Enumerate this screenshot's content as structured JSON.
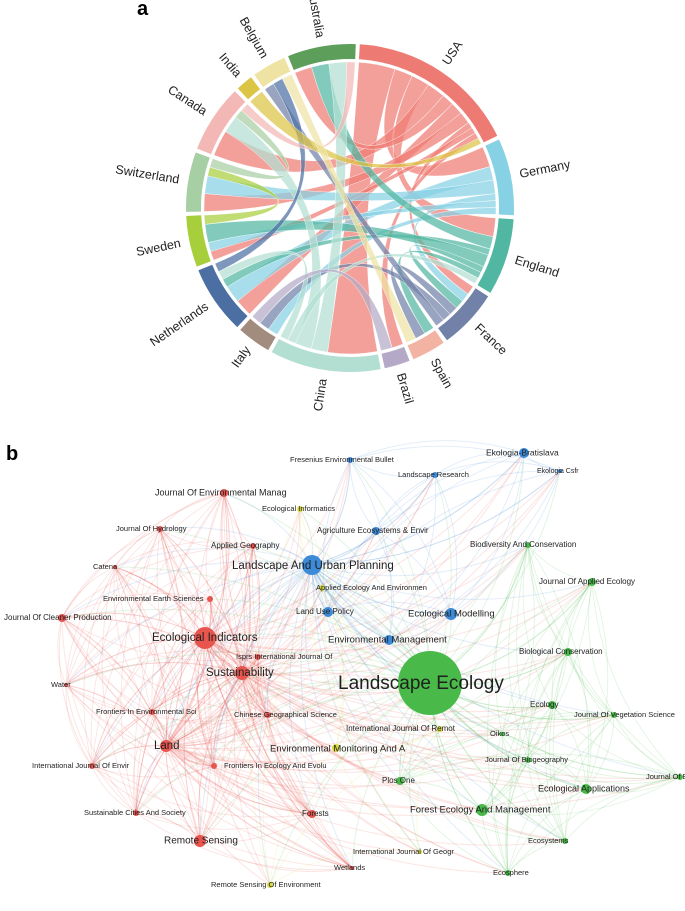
{
  "panel_a": {
    "letter": "a",
    "countries": [
      {
        "name": "USA",
        "value": 20,
        "color": "#ee7b73"
      },
      {
        "name": "Germany",
        "value": 9,
        "color": "#86d1e4"
      },
      {
        "name": "England",
        "value": 9,
        "color": "#52b7a2"
      },
      {
        "name": "France",
        "value": 7,
        "color": "#7181a7"
      },
      {
        "name": "Spain",
        "value": 4,
        "color": "#f2b3a3"
      },
      {
        "name": "Brazil",
        "value": 3,
        "color": "#b4aac7"
      },
      {
        "name": "China",
        "value": 13,
        "color": "#b3dfd3"
      },
      {
        "name": "Italy",
        "value": 4,
        "color": "#a28c7e"
      },
      {
        "name": "Netherlands",
        "value": 8,
        "color": "#4c6fa3"
      },
      {
        "name": "Sweden",
        "value": 6,
        "color": "#a7cf3c"
      },
      {
        "name": "Switzerland",
        "value": 7,
        "color": "#a7cfa4"
      },
      {
        "name": "Canada",
        "value": 8,
        "color": "#f3b8b5"
      },
      {
        "name": "India",
        "value": 2,
        "color": "#dcc444"
      },
      {
        "name": "Belgium",
        "value": 4,
        "color": "#efe3a3"
      },
      {
        "name": "Australia",
        "value": 8,
        "color": "#5c9e5a"
      }
    ],
    "links": [
      [
        "USA",
        "China",
        6
      ],
      [
        "USA",
        "Germany",
        3
      ],
      [
        "USA",
        "England",
        3
      ],
      [
        "USA",
        "Canada",
        3
      ],
      [
        "USA",
        "Australia",
        2
      ],
      [
        "USA",
        "Netherlands",
        2
      ],
      [
        "USA",
        "Switzerland",
        2
      ],
      [
        "USA",
        "France",
        1
      ],
      [
        "USA",
        "Sweden",
        1
      ],
      [
        "USA",
        "Brazil",
        1
      ],
      [
        "Germany",
        "Netherlands",
        2
      ],
      [
        "Germany",
        "Switzerland",
        2
      ],
      [
        "Germany",
        "France",
        1
      ],
      [
        "Germany",
        "Sweden",
        1
      ],
      [
        "Germany",
        "Italy",
        1
      ],
      [
        "England",
        "Australia",
        2
      ],
      [
        "England",
        "Netherlands",
        1
      ],
      [
        "England",
        "Sweden",
        2
      ],
      [
        "England",
        "France",
        1
      ],
      [
        "England",
        "Spain",
        1
      ],
      [
        "France",
        "Spain",
        1
      ],
      [
        "France",
        "Italy",
        1
      ],
      [
        "France",
        "Belgium",
        1
      ],
      [
        "China",
        "Australia",
        2
      ],
      [
        "China",
        "Canada",
        2
      ],
      [
        "China",
        "England",
        1
      ],
      [
        "China",
        "Netherlands",
        1
      ],
      [
        "Netherlands",
        "Belgium",
        1
      ],
      [
        "Sweden",
        "Switzerland",
        1
      ],
      [
        "Switzerland",
        "Canada",
        1
      ],
      [
        "Canada",
        "Australia",
        1
      ],
      [
        "India",
        "USA",
        1
      ],
      [
        "Belgium",
        "Spain",
        1
      ],
      [
        "Brazil",
        "Italy",
        1
      ]
    ]
  },
  "panel_b": {
    "letter": "b",
    "clusters": {
      "red": "#e8544e",
      "green": "#49b949",
      "blue": "#3d8ad8",
      "yellow": "#d8d840"
    },
    "nodes": [
      {
        "label": "Landscape Ecology",
        "cluster": "green",
        "size": 10,
        "font": 19
      },
      {
        "label": "Landscape And Urban Planning",
        "cluster": "blue",
        "size": 4,
        "font": 11.5
      },
      {
        "label": "Ecological Indicators",
        "cluster": "red",
        "size": 4.5,
        "font": 11.5
      },
      {
        "label": "Sustainability",
        "cluster": "red",
        "size": 3.2,
        "font": 11.5
      },
      {
        "label": "Land",
        "cluster": "red",
        "size": 3,
        "font": 11.5
      },
      {
        "label": "Remote Sensing",
        "cluster": "red",
        "size": 2.8,
        "font": 10
      },
      {
        "label": "Environmental Management",
        "cluster": "blue",
        "size": 2.2,
        "font": 9.5
      },
      {
        "label": "Ecological Modelling",
        "cluster": "blue",
        "size": 2.4,
        "font": 9.5
      },
      {
        "label": "Forest Ecology And Management",
        "cluster": "green",
        "size": 2.6,
        "font": 9.5
      },
      {
        "label": "Ecological Applications",
        "cluster": "green",
        "size": 2.2,
        "font": 9
      },
      {
        "label": "Environmental Monitoring And A",
        "cluster": "yellow",
        "size": 2.0,
        "font": 9.5
      },
      {
        "label": "Journal Of Environmental Manag",
        "cluster": "red",
        "size": 2.0,
        "font": 9
      },
      {
        "label": "Ekologia-Bratislava",
        "cluster": "blue",
        "size": 1.9,
        "font": 8.5
      },
      {
        "label": "Ekologia Csfr",
        "cluster": "blue",
        "size": 1.2,
        "font": 7
      },
      {
        "label": "Fresenius Environmental Bullet",
        "cluster": "blue",
        "size": 1.3,
        "font": 7.5
      },
      {
        "label": "Landscape Research",
        "cluster": "blue",
        "size": 1.3,
        "font": 7.5
      },
      {
        "label": "Ecological Informatics",
        "cluster": "yellow",
        "size": 1.3,
        "font": 7.5
      },
      {
        "label": "Journal Of Hydrology",
        "cluster": "red",
        "size": 1.3,
        "font": 7.5
      },
      {
        "label": "Agriculture Ecosystems & Envir",
        "cluster": "blue",
        "size": 1.6,
        "font": 8
      },
      {
        "label": "Biodiversity And Conservation",
        "cluster": "green",
        "size": 1.5,
        "font": 8
      },
      {
        "label": "Applied Geography",
        "cluster": "red",
        "size": 1.5,
        "font": 8
      },
      {
        "label": "Catena",
        "cluster": "red",
        "size": 1.2,
        "font": 7.5
      },
      {
        "label": "Journal Of Applied Ecology",
        "cluster": "green",
        "size": 1.6,
        "font": 8
      },
      {
        "label": "Applied Ecology And Environmen",
        "cluster": "yellow",
        "size": 1.3,
        "font": 7.5
      },
      {
        "label": "Environmental Earth Sciences",
        "cluster": "red",
        "size": 1.3,
        "font": 7.5
      },
      {
        "label": "Journal Of Cleaner Production",
        "cluster": "red",
        "size": 1.5,
        "font": 8
      },
      {
        "label": "Land Use Policy",
        "cluster": "blue",
        "size": 1.8,
        "font": 8
      },
      {
        "label": "Biological Conservation",
        "cluster": "green",
        "size": 1.6,
        "font": 8
      },
      {
        "label": "Isprs International Journal Of",
        "cluster": "red",
        "size": 1.3,
        "font": 7.5
      },
      {
        "label": "Water",
        "cluster": "red",
        "size": 1.2,
        "font": 7.5
      },
      {
        "label": "Frontiers In Environmental Sci",
        "cluster": "red",
        "size": 1.3,
        "font": 7.5
      },
      {
        "label": "Chinese Geographical Science",
        "cluster": "red",
        "size": 1.3,
        "font": 7.5
      },
      {
        "label": "Ecology",
        "cluster": "green",
        "size": 1.5,
        "font": 8
      },
      {
        "label": "International Journal Of Remot",
        "cluster": "yellow",
        "size": 1.5,
        "font": 8
      },
      {
        "label": "Journal Of Vegetation Science",
        "cluster": "green",
        "size": 1.3,
        "font": 7.5
      },
      {
        "label": "Oikos",
        "cluster": "green",
        "size": 1.3,
        "font": 7.5
      },
      {
        "label": "Journal Of Biogeography",
        "cluster": "green",
        "size": 1.3,
        "font": 7.5
      },
      {
        "label": "International Journal Of Envir",
        "cluster": "red",
        "size": 1.4,
        "font": 7.5
      },
      {
        "label": "Frontiers In Ecology And Evolu",
        "cluster": "red",
        "size": 1.3,
        "font": 7.5
      },
      {
        "label": "Journal Of Ecology",
        "cluster": "green",
        "size": 1.4,
        "font": 7.5
      },
      {
        "label": "Plos One",
        "cluster": "green",
        "size": 1.5,
        "font": 8
      },
      {
        "label": "Sustainable Cities And Society",
        "cluster": "red",
        "size": 1.3,
        "font": 7.5
      },
      {
        "label": "Forests",
        "cluster": "red",
        "size": 1.6,
        "font": 8
      },
      {
        "label": "Ecosystems",
        "cluster": "green",
        "size": 1.3,
        "font": 7.5
      },
      {
        "label": "International Journal Of Geogr",
        "cluster": "yellow",
        "size": 1.2,
        "font": 7.5
      },
      {
        "label": "Wetlands",
        "cluster": "red",
        "size": 1.2,
        "font": 7.5
      },
      {
        "label": "Ecosphere",
        "cluster": "green",
        "size": 1.3,
        "font": 7.5
      },
      {
        "label": "Remote Sensing Of Environment",
        "cluster": "yellow",
        "size": 1.3,
        "font": 7.5
      }
    ]
  }
}
